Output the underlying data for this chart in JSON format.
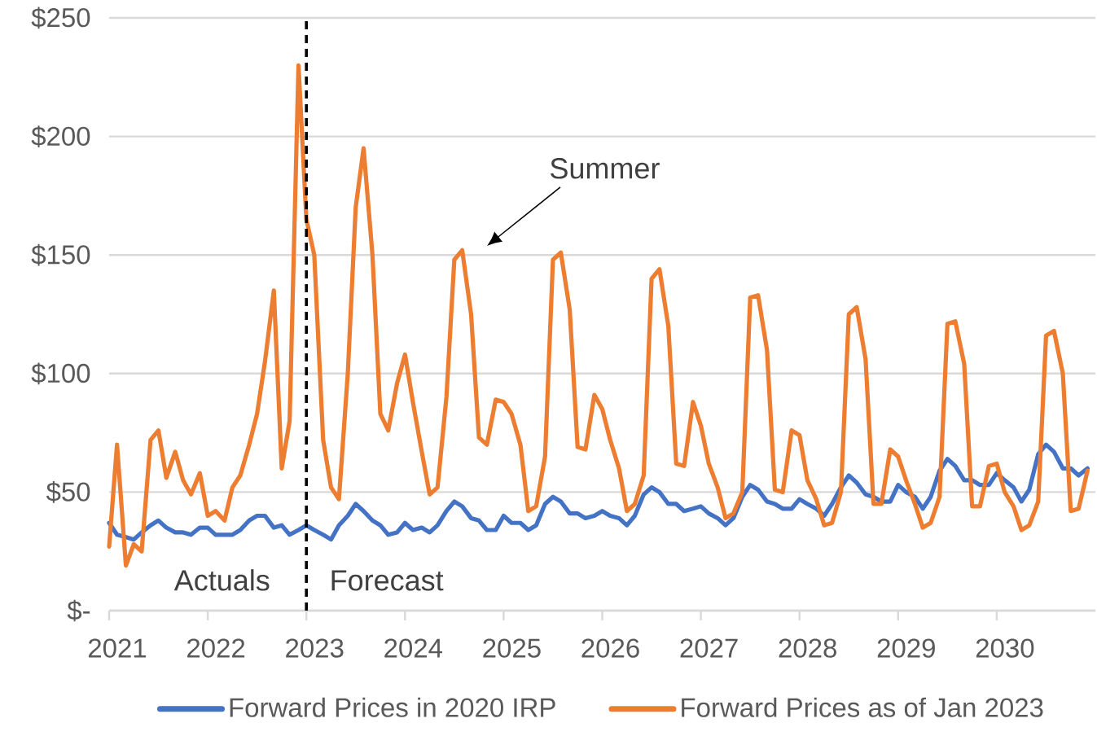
{
  "chart_data": {
    "type": "line",
    "x": [
      "2021-01",
      "2021-02",
      "2021-03",
      "2021-04",
      "2021-05",
      "2021-06",
      "2021-07",
      "2021-08",
      "2021-09",
      "2021-10",
      "2021-11",
      "2021-12",
      "2022-01",
      "2022-02",
      "2022-03",
      "2022-04",
      "2022-05",
      "2022-06",
      "2022-07",
      "2022-08",
      "2022-09",
      "2022-10",
      "2022-11",
      "2022-12",
      "2023-01",
      "2023-02",
      "2023-03",
      "2023-04",
      "2023-05",
      "2023-06",
      "2023-07",
      "2023-08",
      "2023-09",
      "2023-10",
      "2023-11",
      "2023-12",
      "2024-01",
      "2024-02",
      "2024-03",
      "2024-04",
      "2024-05",
      "2024-06",
      "2024-07",
      "2024-08",
      "2024-09",
      "2024-10",
      "2024-11",
      "2024-12",
      "2025-01",
      "2025-02",
      "2025-03",
      "2025-04",
      "2025-05",
      "2025-06",
      "2025-07",
      "2025-08",
      "2025-09",
      "2025-10",
      "2025-11",
      "2025-12",
      "2026-01",
      "2026-02",
      "2026-03",
      "2026-04",
      "2026-05",
      "2026-06",
      "2026-07",
      "2026-08",
      "2026-09",
      "2026-10",
      "2026-11",
      "2026-12",
      "2027-01",
      "2027-02",
      "2027-03",
      "2027-04",
      "2027-05",
      "2027-06",
      "2027-07",
      "2027-08",
      "2027-09",
      "2027-10",
      "2027-11",
      "2027-12",
      "2028-01",
      "2028-02",
      "2028-03",
      "2028-04",
      "2028-05",
      "2028-06",
      "2028-07",
      "2028-08",
      "2028-09",
      "2028-10",
      "2028-11",
      "2028-12",
      "2029-01",
      "2029-02",
      "2029-03",
      "2029-04",
      "2029-05",
      "2029-06",
      "2029-07",
      "2029-08",
      "2029-09",
      "2029-10",
      "2029-11",
      "2029-12",
      "2030-01",
      "2030-02",
      "2030-03",
      "2030-04",
      "2030-05",
      "2030-06",
      "2030-07",
      "2030-08",
      "2030-09",
      "2030-10",
      "2030-11",
      "2030-12"
    ],
    "series": [
      {
        "name": "Forward Prices in 2020 IRP",
        "color": "#4472c4",
        "values": [
          37,
          32,
          31,
          30,
          33,
          36,
          38,
          35,
          33,
          33,
          32,
          35,
          35,
          32,
          32,
          32,
          34,
          38,
          40,
          40,
          35,
          36,
          32,
          34,
          36,
          34,
          32,
          30,
          36,
          40,
          45,
          42,
          38,
          36,
          32,
          33,
          37,
          34,
          35,
          33,
          36,
          42,
          46,
          44,
          39,
          38,
          34,
          34,
          40,
          37,
          37,
          34,
          36,
          45,
          48,
          46,
          41,
          41,
          39,
          40,
          42,
          40,
          39,
          36,
          40,
          49,
          52,
          50,
          45,
          45,
          42,
          43,
          44,
          41,
          39,
          36,
          39,
          48,
          53,
          51,
          46,
          45,
          43,
          43,
          47,
          45,
          43,
          40,
          45,
          52,
          57,
          54,
          49,
          48,
          46,
          46,
          53,
          50,
          48,
          43,
          48,
          59,
          64,
          61,
          55,
          55,
          53,
          53,
          58,
          55,
          52,
          46,
          51,
          66,
          70,
          67,
          60,
          60,
          57,
          60
        ]
      },
      {
        "name": "Forward Prices as of Jan 2023",
        "color": "#ed7d31",
        "values": [
          27,
          70,
          19,
          28,
          25,
          72,
          76,
          56,
          67,
          55,
          49,
          58,
          40,
          42,
          38,
          52,
          57,
          70,
          83,
          105,
          135,
          60,
          80,
          230,
          165,
          150,
          72,
          52,
          47,
          100,
          170,
          195,
          150,
          83,
          76,
          96,
          108,
          88,
          67,
          49,
          52,
          90,
          148,
          152,
          125,
          73,
          70,
          89,
          88,
          83,
          70,
          42,
          44,
          65,
          148,
          151,
          127,
          69,
          68,
          91,
          85,
          72,
          60,
          42,
          45,
          57,
          140,
          144,
          120,
          62,
          61,
          88,
          78,
          62,
          52,
          39,
          41,
          50,
          132,
          133,
          110,
          51,
          50,
          76,
          74,
          55,
          47,
          36,
          37,
          50,
          125,
          128,
          106,
          45,
          45,
          68,
          65,
          55,
          45,
          35,
          37,
          48,
          121,
          122,
          104,
          44,
          44,
          61,
          62,
          50,
          44,
          34,
          36,
          46,
          116,
          118,
          100,
          42,
          43,
          59
        ]
      }
    ],
    "xlim": [
      "2021-01",
      "2031-01"
    ],
    "xticks": [
      "2021",
      "2022",
      "2023",
      "2024",
      "2025",
      "2026",
      "2027",
      "2028",
      "2029",
      "2030"
    ],
    "ylim": [
      0,
      250
    ],
    "yticks": [
      {
        "value": 0,
        "label": "$-"
      },
      {
        "value": 50,
        "label": "$50"
      },
      {
        "value": 100,
        "label": "$100"
      },
      {
        "value": 150,
        "label": "$150"
      },
      {
        "value": 200,
        "label": "$200"
      },
      {
        "value": 250,
        "label": "$250"
      }
    ],
    "grid": "y",
    "legend": "bottom",
    "line_style": "solid",
    "marker": "none",
    "ref_lines": [
      {
        "axis": "x",
        "value": "2023-01",
        "color": "#000000",
        "line_style": "dashed"
      }
    ],
    "annotations": [
      "Actuals",
      "Forecast",
      "Summer"
    ]
  }
}
